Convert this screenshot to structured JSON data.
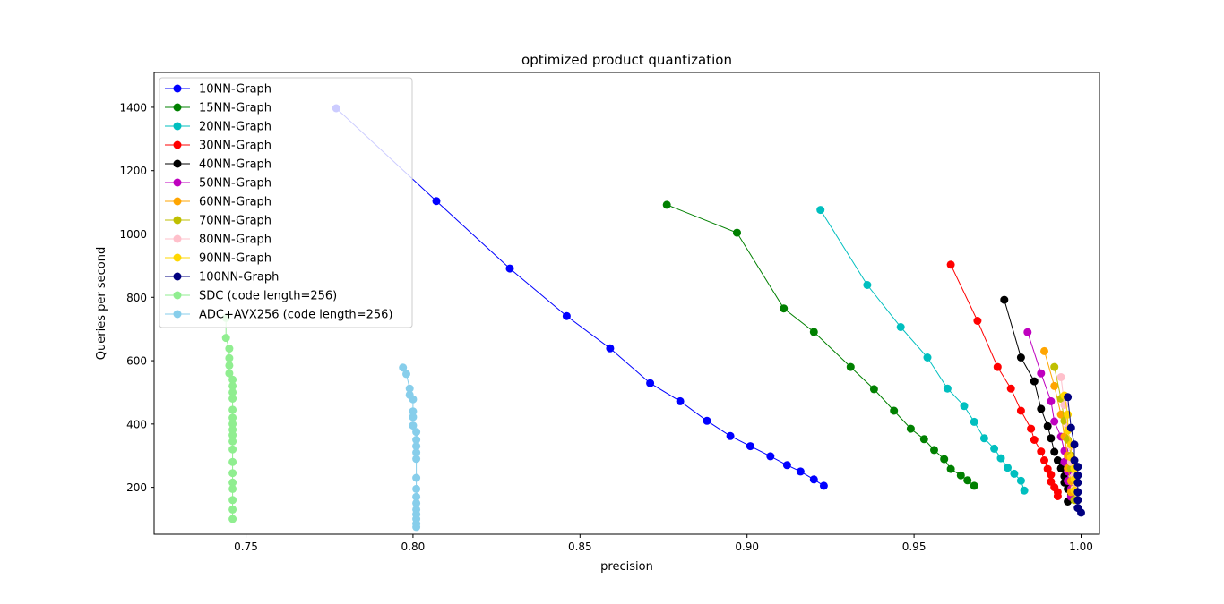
{
  "chart_data": {
    "type": "line",
    "title": "optimized product quantization",
    "xlabel": "precision",
    "ylabel": "Queries per second",
    "xlim": [
      0.7225,
      1.0055
    ],
    "ylim": [
      52,
      1510
    ],
    "xticks": [
      0.75,
      0.8,
      0.85,
      0.9,
      0.95,
      1.0
    ],
    "xtick_labels": [
      "0.75",
      "0.80",
      "0.85",
      "0.90",
      "0.95",
      "1.00"
    ],
    "yticks": [
      200,
      400,
      600,
      800,
      1000,
      1200,
      1400
    ],
    "ytick_labels": [
      "200",
      "400",
      "600",
      "800",
      "1000",
      "1200",
      "1400"
    ],
    "legend_position": "top-left",
    "grid": false,
    "series": [
      {
        "name": "10NN-Graph",
        "color": "#0000ff",
        "x": [
          0.777,
          0.807,
          0.829,
          0.846,
          0.859,
          0.871,
          0.88,
          0.888,
          0.895,
          0.901,
          0.907,
          0.912,
          0.916,
          0.92,
          0.923
        ],
        "y": [
          1397,
          1104,
          891,
          741,
          639,
          529,
          472,
          410,
          362,
          330,
          298,
          270,
          250,
          225,
          205
        ]
      },
      {
        "name": "15NN-Graph",
        "color": "#008000",
        "x": [
          0.876,
          0.897,
          0.911,
          0.92,
          0.931,
          0.938,
          0.944,
          0.949,
          0.953,
          0.956,
          0.959,
          0.961,
          0.964,
          0.966,
          0.968
        ],
        "y": [
          1092,
          1004,
          765,
          691,
          580,
          510,
          442,
          385,
          352,
          318,
          289,
          258,
          238,
          222,
          205
        ]
      },
      {
        "name": "20NN-Graph",
        "color": "#00bfbf",
        "x": [
          0.922,
          0.936,
          0.946,
          0.954,
          0.96,
          0.965,
          0.968,
          0.971,
          0.974,
          0.976,
          0.978,
          0.98,
          0.982,
          0.983
        ],
        "y": [
          1076,
          839,
          706,
          610,
          512,
          457,
          407,
          355,
          322,
          292,
          262,
          243,
          221,
          190
        ]
      },
      {
        "name": "30NN-Graph",
        "color": "#ff0000",
        "x": [
          0.961,
          0.969,
          0.975,
          0.979,
          0.982,
          0.985,
          0.986,
          0.988,
          0.989,
          0.99,
          0.991,
          0.991,
          0.992,
          0.993,
          0.993
        ],
        "y": [
          903,
          726,
          580,
          512,
          442,
          385,
          350,
          313,
          285,
          258,
          240,
          218,
          200,
          185,
          172
        ]
      },
      {
        "name": "40NN-Graph",
        "color": "#000000",
        "x": [
          0.977,
          0.982,
          0.986,
          0.988,
          0.99,
          0.991,
          0.992,
          0.993,
          0.994,
          0.995,
          0.995,
          0.996,
          0.996
        ],
        "y": [
          792,
          610,
          535,
          448,
          393,
          355,
          312,
          285,
          260,
          235,
          215,
          195,
          155
        ]
      },
      {
        "name": "50NN-Graph",
        "color": "#bf00bf",
        "x": [
          0.984,
          0.988,
          0.991,
          0.992,
          0.994,
          0.995,
          0.995,
          0.996,
          0.996,
          0.997,
          0.997
        ],
        "y": [
          690,
          560,
          472,
          408,
          360,
          315,
          280,
          250,
          220,
          195,
          170
        ]
      },
      {
        "name": "60NN-Graph",
        "color": "#ffa500",
        "x": [
          0.989,
          0.992,
          0.994,
          0.995,
          0.996,
          0.996,
          0.997,
          0.997
        ],
        "y": [
          630,
          520,
          430,
          360,
          300,
          260,
          220,
          185
        ]
      },
      {
        "name": "70NN-Graph",
        "color": "#bfbf00",
        "x": [
          0.992,
          0.994,
          0.995,
          0.996,
          0.997,
          0.997,
          0.998,
          0.998,
          0.998
        ],
        "y": [
          580,
          480,
          410,
          350,
          300,
          260,
          225,
          195,
          160
        ]
      },
      {
        "name": "80NN-Graph",
        "color": "#ffc0cb",
        "x": [
          0.994,
          0.995,
          0.996,
          0.997,
          0.997,
          0.998,
          0.998
        ],
        "y": [
          548,
          460,
          390,
          330,
          280,
          235,
          195
        ]
      },
      {
        "name": "90NN-Graph",
        "color": "#ffd700",
        "x": [
          0.995,
          0.996,
          0.996,
          0.997,
          0.997,
          0.998,
          0.998,
          0.998,
          0.999
        ],
        "y": [
          490,
          430,
          380,
          335,
          295,
          260,
          225,
          190,
          160
        ]
      },
      {
        "name": "100NN-Graph",
        "color": "#000080",
        "x": [
          0.996,
          0.997,
          0.998,
          0.998,
          0.999,
          0.999,
          0.999,
          0.999,
          0.999,
          0.999,
          1.0
        ],
        "y": [
          485,
          388,
          335,
          285,
          265,
          238,
          215,
          185,
          160,
          135,
          120
        ]
      },
      {
        "name": "SDC (code length=256)",
        "color": "#90ee90",
        "x": [
          0.744,
          0.744,
          0.745,
          0.745,
          0.745,
          0.745,
          0.746,
          0.746,
          0.746,
          0.746,
          0.746,
          0.746,
          0.746,
          0.746,
          0.746,
          0.746,
          0.746,
          0.746,
          0.746,
          0.746,
          0.746,
          0.746,
          0.746,
          0.746
        ],
        "y": [
          735,
          672,
          638,
          608,
          585,
          560,
          540,
          520,
          500,
          480,
          445,
          420,
          400,
          382,
          365,
          345,
          320,
          280,
          245,
          215,
          195,
          160,
          130,
          100
        ]
      },
      {
        "name": "ADC+AVX256 (code length=256)",
        "color": "#87ceeb",
        "x": [
          0.797,
          0.798,
          0.799,
          0.799,
          0.8,
          0.8,
          0.8,
          0.8,
          0.801,
          0.801,
          0.801,
          0.801,
          0.801,
          0.801,
          0.801,
          0.801,
          0.801,
          0.801,
          0.801,
          0.801,
          0.801,
          0.801
        ],
        "y": [
          578,
          558,
          512,
          492,
          478,
          440,
          422,
          395,
          375,
          350,
          330,
          310,
          290,
          230,
          195,
          170,
          150,
          130,
          115,
          100,
          85,
          75
        ]
      }
    ]
  }
}
